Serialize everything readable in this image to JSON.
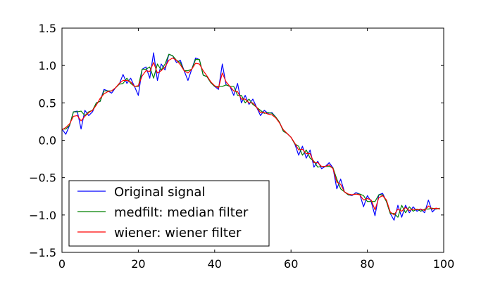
{
  "chart_data": {
    "type": "line",
    "title": "",
    "xlabel": "",
    "ylabel": "",
    "xlim": [
      0,
      100
    ],
    "ylim": [
      -1.5,
      1.5
    ],
    "x_ticks": [
      0,
      20,
      40,
      60,
      80,
      100
    ],
    "x_tick_labels": [
      "0",
      "20",
      "40",
      "60",
      "80",
      "100"
    ],
    "y_ticks": [
      1.5,
      1.0,
      0.5,
      0.0,
      -0.5,
      -1.0,
      -1.5
    ],
    "y_tick_labels": [
      "1.5",
      "1.0",
      "0.5",
      "0.0",
      "−0.5",
      "−1.0",
      "−1.5"
    ],
    "grid": false,
    "legend_position": "lower-left",
    "x": [
      0,
      1,
      2,
      3,
      4,
      5,
      6,
      7,
      8,
      9,
      10,
      11,
      12,
      13,
      14,
      15,
      16,
      17,
      18,
      19,
      20,
      21,
      22,
      23,
      24,
      25,
      26,
      27,
      28,
      29,
      30,
      31,
      32,
      33,
      34,
      35,
      36,
      37,
      38,
      39,
      40,
      41,
      42,
      43,
      44,
      45,
      46,
      47,
      48,
      49,
      50,
      51,
      52,
      53,
      54,
      55,
      56,
      57,
      58,
      59,
      60,
      61,
      62,
      63,
      64,
      65,
      66,
      67,
      68,
      69,
      70,
      71,
      72,
      73,
      74,
      75,
      76,
      77,
      78,
      79,
      80,
      81,
      82,
      83,
      84,
      85,
      86,
      87,
      88,
      89,
      90,
      91,
      92,
      93,
      94,
      95,
      96,
      97,
      98,
      99
    ],
    "series": [
      {
        "name": "Original signal",
        "color": "#0000ff",
        "values": [
          0.15,
          0.08,
          0.2,
          0.38,
          0.39,
          0.15,
          0.4,
          0.33,
          0.38,
          0.5,
          0.52,
          0.68,
          0.66,
          0.63,
          0.7,
          0.75,
          0.88,
          0.76,
          0.83,
          0.72,
          0.6,
          0.95,
          0.98,
          0.83,
          1.17,
          0.8,
          1.02,
          0.94,
          1.15,
          1.13,
          1.04,
          1.07,
          0.93,
          0.8,
          0.95,
          1.1,
          1.08,
          0.87,
          0.85,
          0.77,
          0.72,
          0.68,
          1.02,
          0.74,
          0.72,
          0.6,
          0.76,
          0.5,
          0.6,
          0.48,
          0.55,
          0.44,
          0.33,
          0.4,
          0.36,
          0.37,
          0.31,
          0.24,
          0.12,
          0.09,
          0.04,
          -0.05,
          -0.2,
          -0.08,
          -0.24,
          -0.13,
          -0.36,
          -0.28,
          -0.38,
          -0.35,
          -0.3,
          -0.37,
          -0.65,
          -0.52,
          -0.69,
          -0.73,
          -0.74,
          -0.7,
          -0.72,
          -0.89,
          -0.74,
          -0.82,
          -1.01,
          -0.73,
          -0.71,
          -0.82,
          -0.98,
          -1.07,
          -0.87,
          -1.03,
          -0.87,
          -0.97,
          -0.89,
          -0.95,
          -0.92,
          -0.97,
          -0.8,
          -0.96,
          -0.91,
          -0.92
        ]
      },
      {
        "name": "medfilt: median filter",
        "color": "#008000",
        "values": [
          0.15,
          0.15,
          0.2,
          0.38,
          0.38,
          0.39,
          0.33,
          0.38,
          0.4,
          0.5,
          0.52,
          0.66,
          0.66,
          0.66,
          0.7,
          0.75,
          0.76,
          0.83,
          0.76,
          0.72,
          0.72,
          0.95,
          0.95,
          0.98,
          0.83,
          1.02,
          0.94,
          1.02,
          1.15,
          1.13,
          1.07,
          1.04,
          0.93,
          0.93,
          0.95,
          1.08,
          1.08,
          0.87,
          0.85,
          0.77,
          0.72,
          0.72,
          0.72,
          0.74,
          0.72,
          0.72,
          0.6,
          0.6,
          0.5,
          0.55,
          0.48,
          0.44,
          0.4,
          0.36,
          0.37,
          0.36,
          0.31,
          0.24,
          0.12,
          0.09,
          0.04,
          -0.05,
          -0.08,
          -0.2,
          -0.13,
          -0.24,
          -0.28,
          -0.36,
          -0.35,
          -0.35,
          -0.35,
          -0.37,
          -0.52,
          -0.65,
          -0.69,
          -0.73,
          -0.73,
          -0.72,
          -0.72,
          -0.74,
          -0.82,
          -0.82,
          -0.82,
          -0.73,
          -0.73,
          -0.82,
          -0.98,
          -0.98,
          -1.03,
          -0.87,
          -0.97,
          -0.89,
          -0.95,
          -0.92,
          -0.95,
          -0.92,
          -0.92,
          -0.91,
          -0.92,
          -0.91
        ]
      },
      {
        "name": "wiener: wiener filter",
        "color": "#ff0000",
        "values": [
          0.14,
          0.17,
          0.22,
          0.32,
          0.33,
          0.26,
          0.32,
          0.37,
          0.4,
          0.47,
          0.56,
          0.62,
          0.65,
          0.66,
          0.7,
          0.76,
          0.8,
          0.8,
          0.78,
          0.72,
          0.73,
          0.86,
          0.93,
          0.92,
          1.04,
          0.9,
          0.93,
          0.98,
          1.07,
          1.1,
          1.07,
          1.01,
          0.93,
          0.9,
          0.95,
          1.03,
          1.02,
          0.93,
          0.86,
          0.78,
          0.73,
          0.7,
          0.9,
          0.78,
          0.72,
          0.66,
          0.65,
          0.55,
          0.55,
          0.5,
          0.5,
          0.44,
          0.37,
          0.37,
          0.35,
          0.34,
          0.3,
          0.23,
          0.14,
          0.09,
          0.04,
          -0.04,
          -0.13,
          -0.12,
          -0.18,
          -0.18,
          -0.3,
          -0.3,
          -0.35,
          -0.35,
          -0.33,
          -0.38,
          -0.56,
          -0.59,
          -0.69,
          -0.72,
          -0.73,
          -0.72,
          -0.73,
          -0.8,
          -0.78,
          -0.8,
          -0.93,
          -0.77,
          -0.74,
          -0.8,
          -0.96,
          -1.0,
          -0.92,
          -0.95,
          -0.9,
          -0.94,
          -0.92,
          -0.93,
          -0.92,
          -0.94,
          -0.88,
          -0.92,
          -0.91,
          -0.92
        ]
      }
    ]
  }
}
